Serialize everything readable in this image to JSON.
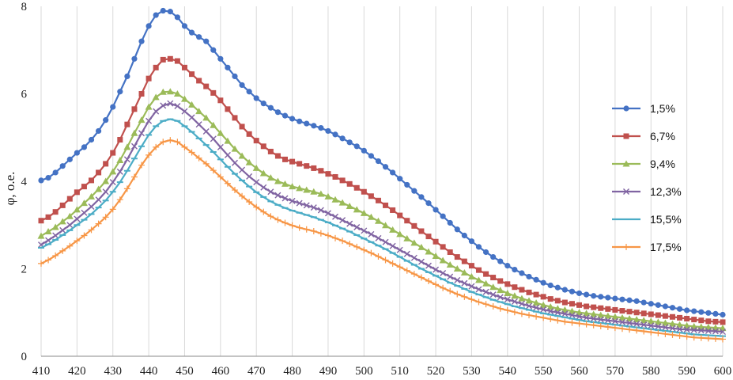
{
  "chart_data": {
    "type": "line",
    "title": "",
    "xlabel": "",
    "ylabel": "φ, о.е.",
    "xlim": [
      410,
      600
    ],
    "ylim": [
      0,
      8
    ],
    "x_ticks": [
      "410",
      "420",
      "430",
      "440",
      "450",
      "460",
      "470",
      "480",
      "490",
      "500",
      "510",
      "520",
      "530",
      "540",
      "550",
      "560",
      "570",
      "580",
      "590",
      "600"
    ],
    "y_ticks": [
      "0",
      "2",
      "4",
      "6",
      "8"
    ],
    "grid": "vertical",
    "legend_position": "right",
    "x": [
      410,
      412,
      414,
      416,
      418,
      420,
      422,
      424,
      426,
      428,
      430,
      432,
      434,
      436,
      438,
      440,
      442,
      444,
      446,
      448,
      450,
      452,
      454,
      456,
      458,
      460,
      462,
      464,
      466,
      468,
      470,
      472,
      474,
      476,
      478,
      480,
      482,
      484,
      486,
      488,
      490,
      492,
      494,
      496,
      498,
      500,
      502,
      504,
      506,
      508,
      510,
      512,
      514,
      516,
      518,
      520,
      522,
      524,
      526,
      528,
      530,
      532,
      534,
      536,
      538,
      540,
      542,
      544,
      546,
      548,
      550,
      552,
      554,
      556,
      558,
      560,
      562,
      564,
      566,
      568,
      570,
      572,
      574,
      576,
      578,
      580,
      582,
      584,
      586,
      588,
      590,
      592,
      594,
      596,
      598,
      600
    ],
    "series": [
      {
        "name": "1,5%",
        "color": "#4472C4",
        "marker": "circle",
        "values": [
          4.02,
          4.08,
          4.2,
          4.35,
          4.5,
          4.65,
          4.78,
          4.95,
          5.15,
          5.4,
          5.7,
          6.05,
          6.4,
          6.8,
          7.2,
          7.55,
          7.8,
          7.9,
          7.88,
          7.75,
          7.55,
          7.4,
          7.3,
          7.2,
          7.0,
          6.8,
          6.6,
          6.4,
          6.2,
          6.05,
          5.9,
          5.78,
          5.68,
          5.58,
          5.5,
          5.43,
          5.37,
          5.32,
          5.27,
          5.22,
          5.15,
          5.07,
          4.98,
          4.89,
          4.8,
          4.7,
          4.58,
          4.46,
          4.33,
          4.2,
          4.06,
          3.92,
          3.78,
          3.64,
          3.5,
          3.35,
          3.2,
          3.05,
          2.9,
          2.76,
          2.63,
          2.5,
          2.38,
          2.27,
          2.17,
          2.07,
          1.98,
          1.9,
          1.82,
          1.75,
          1.68,
          1.62,
          1.57,
          1.52,
          1.48,
          1.44,
          1.41,
          1.38,
          1.36,
          1.34,
          1.32,
          1.3,
          1.28,
          1.26,
          1.23,
          1.2,
          1.17,
          1.14,
          1.11,
          1.08,
          1.05,
          1.03,
          1.01,
          0.99,
          0.97,
          0.95
        ]
      },
      {
        "name": "6,7%",
        "color": "#C0504D",
        "marker": "square",
        "values": [
          3.1,
          3.18,
          3.3,
          3.45,
          3.6,
          3.75,
          3.88,
          4.02,
          4.2,
          4.4,
          4.65,
          4.95,
          5.3,
          5.65,
          6.0,
          6.35,
          6.6,
          6.78,
          6.8,
          6.75,
          6.6,
          6.45,
          6.3,
          6.17,
          6.02,
          5.85,
          5.65,
          5.45,
          5.25,
          5.08,
          4.93,
          4.8,
          4.68,
          4.58,
          4.5,
          4.45,
          4.4,
          4.35,
          4.3,
          4.24,
          4.17,
          4.1,
          4.02,
          3.94,
          3.85,
          3.76,
          3.66,
          3.56,
          3.45,
          3.34,
          3.22,
          3.1,
          2.98,
          2.86,
          2.74,
          2.62,
          2.5,
          2.38,
          2.27,
          2.17,
          2.07,
          1.97,
          1.88,
          1.8,
          1.72,
          1.65,
          1.58,
          1.52,
          1.46,
          1.41,
          1.36,
          1.31,
          1.27,
          1.23,
          1.2,
          1.17,
          1.14,
          1.12,
          1.1,
          1.08,
          1.06,
          1.04,
          1.02,
          1.0,
          0.98,
          0.96,
          0.94,
          0.92,
          0.9,
          0.88,
          0.86,
          0.84,
          0.82,
          0.8,
          0.79,
          0.78
        ]
      },
      {
        "name": "9,4%",
        "color": "#9BBB59",
        "marker": "triangle",
        "values": [
          2.75,
          2.85,
          2.95,
          3.08,
          3.2,
          3.35,
          3.5,
          3.65,
          3.82,
          4.0,
          4.22,
          4.48,
          4.78,
          5.1,
          5.4,
          5.7,
          5.92,
          6.04,
          6.05,
          6.0,
          5.88,
          5.75,
          5.6,
          5.45,
          5.28,
          5.1,
          4.92,
          4.74,
          4.58,
          4.43,
          4.3,
          4.18,
          4.08,
          4.0,
          3.94,
          3.88,
          3.84,
          3.8,
          3.76,
          3.71,
          3.65,
          3.58,
          3.51,
          3.43,
          3.35,
          3.27,
          3.18,
          3.09,
          2.99,
          2.89,
          2.79,
          2.69,
          2.59,
          2.49,
          2.39,
          2.29,
          2.19,
          2.09,
          2.0,
          1.91,
          1.82,
          1.74,
          1.66,
          1.58,
          1.51,
          1.44,
          1.38,
          1.32,
          1.27,
          1.22,
          1.17,
          1.13,
          1.09,
          1.06,
          1.03,
          1.0,
          0.98,
          0.96,
          0.94,
          0.92,
          0.9,
          0.88,
          0.86,
          0.84,
          0.82,
          0.8,
          0.78,
          0.76,
          0.74,
          0.72,
          0.7,
          0.68,
          0.67,
          0.66,
          0.65,
          0.64
        ]
      },
      {
        "name": "12,3%",
        "color": "#8064A2",
        "marker": "x",
        "values": [
          2.55,
          2.65,
          2.76,
          2.88,
          3.0,
          3.14,
          3.28,
          3.42,
          3.58,
          3.76,
          3.98,
          4.22,
          4.5,
          4.8,
          5.1,
          5.38,
          5.6,
          5.73,
          5.78,
          5.72,
          5.6,
          5.46,
          5.3,
          5.14,
          4.97,
          4.78,
          4.6,
          4.42,
          4.26,
          4.11,
          3.98,
          3.86,
          3.76,
          3.68,
          3.61,
          3.55,
          3.5,
          3.45,
          3.4,
          3.34,
          3.27,
          3.19,
          3.11,
          3.03,
          2.95,
          2.87,
          2.79,
          2.7,
          2.61,
          2.52,
          2.43,
          2.34,
          2.25,
          2.16,
          2.07,
          1.98,
          1.9,
          1.82,
          1.74,
          1.67,
          1.6,
          1.53,
          1.47,
          1.41,
          1.35,
          1.3,
          1.25,
          1.2,
          1.15,
          1.11,
          1.07,
          1.03,
          1.0,
          0.97,
          0.94,
          0.91,
          0.88,
          0.86,
          0.84,
          0.82,
          0.8,
          0.78,
          0.76,
          0.74,
          0.72,
          0.7,
          0.68,
          0.66,
          0.64,
          0.62,
          0.61,
          0.6,
          0.59,
          0.58,
          0.57,
          0.56
        ]
      },
      {
        "name": "15,5%",
        "color": "#4BACC6",
        "marker": "dash",
        "values": [
          2.48,
          2.56,
          2.66,
          2.77,
          2.88,
          3.0,
          3.12,
          3.25,
          3.4,
          3.56,
          3.76,
          3.98,
          4.24,
          4.52,
          4.8,
          5.06,
          5.26,
          5.38,
          5.42,
          5.38,
          5.26,
          5.13,
          4.98,
          4.83,
          4.67,
          4.5,
          4.33,
          4.17,
          4.02,
          3.88,
          3.75,
          3.64,
          3.54,
          3.46,
          3.39,
          3.33,
          3.28,
          3.23,
          3.18,
          3.12,
          3.06,
          2.99,
          2.92,
          2.85,
          2.77,
          2.69,
          2.61,
          2.53,
          2.45,
          2.36,
          2.27,
          2.18,
          2.09,
          2.0,
          1.92,
          1.84,
          1.76,
          1.68,
          1.61,
          1.54,
          1.47,
          1.41,
          1.35,
          1.29,
          1.24,
          1.19,
          1.14,
          1.1,
          1.06,
          1.02,
          0.98,
          0.95,
          0.92,
          0.89,
          0.86,
          0.83,
          0.8,
          0.78,
          0.76,
          0.74,
          0.72,
          0.7,
          0.68,
          0.66,
          0.64,
          0.62,
          0.6,
          0.58,
          0.56,
          0.54,
          0.52,
          0.5,
          0.49,
          0.48,
          0.47,
          0.46
        ]
      },
      {
        "name": "17,5%",
        "color": "#F79646",
        "marker": "plus",
        "values": [
          2.12,
          2.2,
          2.3,
          2.41,
          2.52,
          2.64,
          2.76,
          2.89,
          3.03,
          3.18,
          3.36,
          3.58,
          3.83,
          4.1,
          4.37,
          4.6,
          4.78,
          4.9,
          4.94,
          4.9,
          4.78,
          4.66,
          4.53,
          4.4,
          4.25,
          4.1,
          3.95,
          3.8,
          3.66,
          3.53,
          3.41,
          3.3,
          3.2,
          3.12,
          3.05,
          2.99,
          2.94,
          2.9,
          2.86,
          2.81,
          2.76,
          2.7,
          2.64,
          2.57,
          2.5,
          2.43,
          2.36,
          2.28,
          2.2,
          2.12,
          2.04,
          1.96,
          1.88,
          1.8,
          1.72,
          1.64,
          1.56,
          1.49,
          1.42,
          1.36,
          1.3,
          1.24,
          1.19,
          1.14,
          1.09,
          1.05,
          1.01,
          0.97,
          0.94,
          0.91,
          0.88,
          0.85,
          0.82,
          0.79,
          0.77,
          0.75,
          0.73,
          0.71,
          0.69,
          0.67,
          0.65,
          0.63,
          0.61,
          0.59,
          0.57,
          0.55,
          0.53,
          0.51,
          0.49,
          0.47,
          0.45,
          0.43,
          0.42,
          0.41,
          0.4,
          0.39
        ]
      }
    ]
  }
}
